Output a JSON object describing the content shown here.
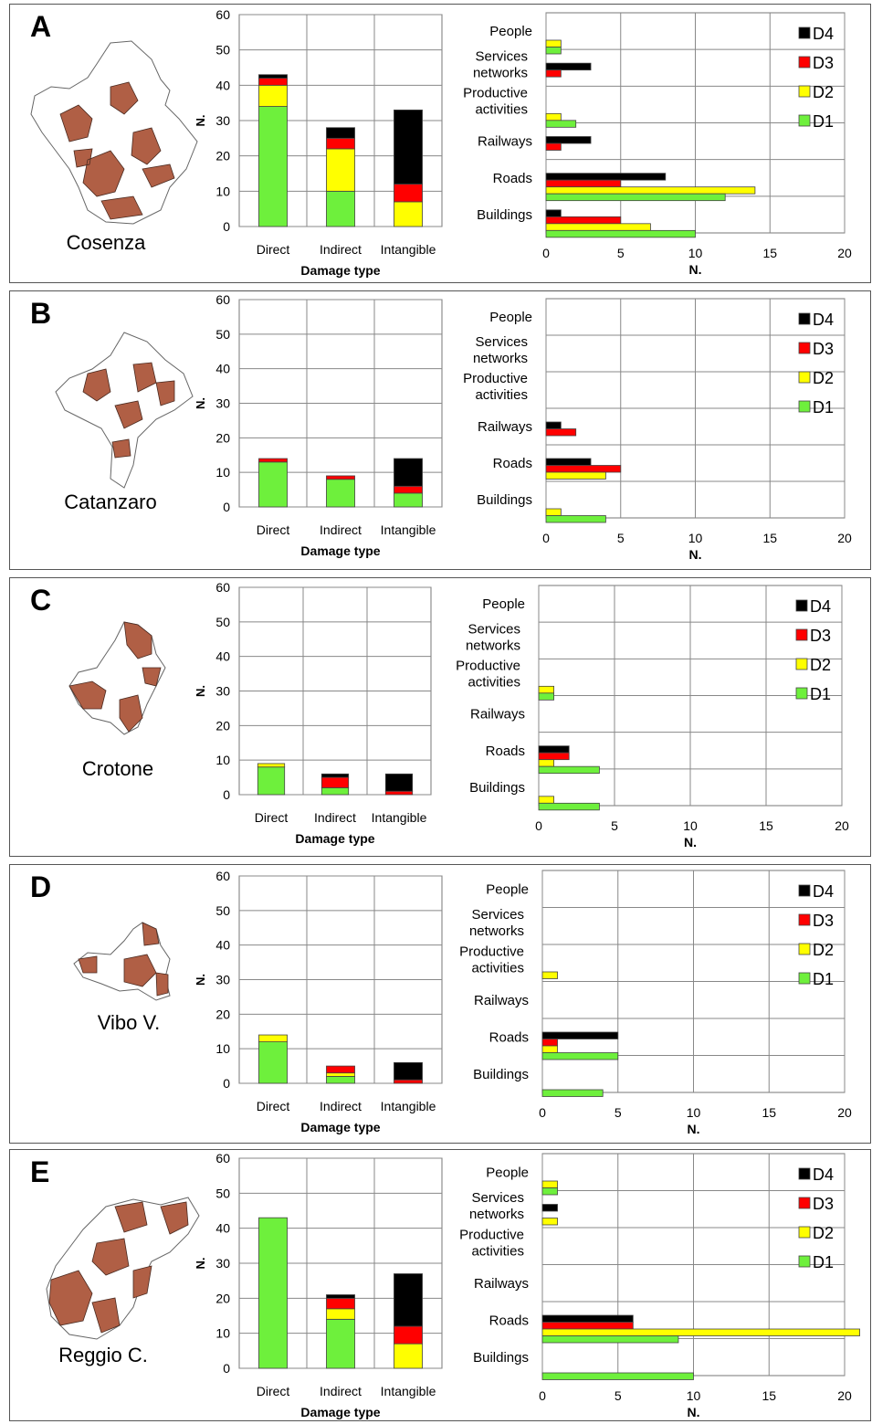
{
  "colors": {
    "D1": "#6EF03C",
    "D2": "#FFFF00",
    "D3": "#FF0000",
    "D4": "#000000",
    "map_fill": "#B05F45"
  },
  "stack_order": [
    "D1",
    "D2",
    "D3",
    "D4"
  ],
  "panels": [
    {
      "letter": "A",
      "province": "Cosenza"
    },
    {
      "letter": "B",
      "province": "Catanzaro"
    },
    {
      "letter": "C",
      "province": "Crotone"
    },
    {
      "letter": "D",
      "province": "Vibo V."
    },
    {
      "letter": "E",
      "province": "Reggio C."
    }
  ],
  "chart_data": [
    {
      "panel": "A",
      "type": "bar",
      "stacked": true,
      "categories": [
        "Direct",
        "Indirect",
        "Intangible"
      ],
      "xlabel": "Damage type",
      "ylabel": "N.",
      "ylim": [
        0,
        60
      ],
      "yticks": [
        0,
        10,
        20,
        30,
        40,
        50,
        60
      ],
      "series": [
        {
          "name": "D1",
          "values": [
            34,
            10,
            0
          ]
        },
        {
          "name": "D2",
          "values": [
            6,
            12,
            7
          ]
        },
        {
          "name": "D3",
          "values": [
            2,
            3,
            5
          ]
        },
        {
          "name": "D4",
          "values": [
            1,
            3,
            21
          ]
        }
      ]
    },
    {
      "panel": "A",
      "type": "bar",
      "orientation": "horizontal",
      "categories": [
        "People",
        "Services networks",
        "Productive activities",
        "Railways",
        "Roads",
        "Buildings"
      ],
      "xlabel": "N.",
      "xlim": [
        0,
        20
      ],
      "xticks": [
        0,
        5,
        10,
        15,
        20
      ],
      "legend": "top-right",
      "series": [
        {
          "name": "D4",
          "values": [
            0,
            3,
            0,
            3,
            8,
            1
          ]
        },
        {
          "name": "D3",
          "values": [
            0,
            1,
            0,
            1,
            5,
            5
          ]
        },
        {
          "name": "D2",
          "values": [
            1,
            0,
            1,
            0,
            14,
            7
          ]
        },
        {
          "name": "D1",
          "values": [
            1,
            0,
            2,
            0,
            12,
            10
          ]
        }
      ]
    },
    {
      "panel": "B",
      "type": "bar",
      "stacked": true,
      "categories": [
        "Direct",
        "Indirect",
        "Intangible"
      ],
      "xlabel": "Damage type",
      "ylabel": "N.",
      "ylim": [
        0,
        60
      ],
      "yticks": [
        0,
        10,
        20,
        30,
        40,
        50,
        60
      ],
      "series": [
        {
          "name": "D1",
          "values": [
            13,
            8,
            4
          ]
        },
        {
          "name": "D2",
          "values": [
            0,
            0,
            0
          ]
        },
        {
          "name": "D3",
          "values": [
            1,
            1,
            2
          ]
        },
        {
          "name": "D4",
          "values": [
            0,
            0,
            8
          ]
        }
      ]
    },
    {
      "panel": "B",
      "type": "bar",
      "orientation": "horizontal",
      "categories": [
        "People",
        "Services networks",
        "Productive activities",
        "Railways",
        "Roads",
        "Buildings"
      ],
      "xlabel": "N.",
      "xlim": [
        0,
        20
      ],
      "xticks": [
        0,
        5,
        10,
        15,
        20
      ],
      "legend": "top-right",
      "series": [
        {
          "name": "D4",
          "values": [
            0,
            0,
            0,
            1,
            3,
            0
          ]
        },
        {
          "name": "D3",
          "values": [
            0,
            0,
            0,
            2,
            5,
            0
          ]
        },
        {
          "name": "D2",
          "values": [
            0,
            0,
            0,
            0,
            4,
            1
          ]
        },
        {
          "name": "D1",
          "values": [
            0,
            0,
            0,
            0,
            0,
            4
          ]
        }
      ]
    },
    {
      "panel": "C",
      "type": "bar",
      "stacked": true,
      "categories": [
        "Direct",
        "Indirect",
        "Intangible"
      ],
      "xlabel": "Damage type",
      "ylabel": "N.",
      "ylim": [
        0,
        60
      ],
      "yticks": [
        0,
        10,
        20,
        30,
        40,
        50,
        60
      ],
      "series": [
        {
          "name": "D1",
          "values": [
            8,
            2,
            0
          ]
        },
        {
          "name": "D2",
          "values": [
            1,
            0,
            0
          ]
        },
        {
          "name": "D3",
          "values": [
            0,
            3,
            1
          ]
        },
        {
          "name": "D4",
          "values": [
            0,
            1,
            5
          ]
        }
      ]
    },
    {
      "panel": "C",
      "type": "bar",
      "orientation": "horizontal",
      "categories": [
        "People",
        "Services networks",
        "Productive activities",
        "Railways",
        "Roads",
        "Buildings"
      ],
      "xlabel": "N.",
      "xlim": [
        0,
        20
      ],
      "xticks": [
        0,
        5,
        10,
        15,
        20
      ],
      "legend": "top-right",
      "series": [
        {
          "name": "D4",
          "values": [
            0,
            0,
            0,
            0,
            2,
            0
          ]
        },
        {
          "name": "D3",
          "values": [
            0,
            0,
            0,
            0,
            2,
            0
          ]
        },
        {
          "name": "D2",
          "values": [
            0,
            0,
            1,
            0,
            1,
            1
          ]
        },
        {
          "name": "D1",
          "values": [
            0,
            0,
            1,
            0,
            4,
            4
          ]
        }
      ]
    },
    {
      "panel": "D",
      "type": "bar",
      "stacked": true,
      "categories": [
        "Direct",
        "Indirect",
        "Intangible"
      ],
      "xlabel": "Damage type",
      "ylabel": "N.",
      "ylim": [
        0,
        60
      ],
      "yticks": [
        0,
        10,
        20,
        30,
        40,
        50,
        60
      ],
      "series": [
        {
          "name": "D1",
          "values": [
            12,
            2,
            0
          ]
        },
        {
          "name": "D2",
          "values": [
            2,
            1,
            0
          ]
        },
        {
          "name": "D3",
          "values": [
            0,
            2,
            1
          ]
        },
        {
          "name": "D4",
          "values": [
            0,
            0,
            5
          ]
        }
      ]
    },
    {
      "panel": "D",
      "type": "bar",
      "orientation": "horizontal",
      "categories": [
        "People",
        "Services networks",
        "Productive activities",
        "Railways",
        "Roads",
        "Buildings"
      ],
      "xlabel": "N.",
      "xlim": [
        0,
        20
      ],
      "xticks": [
        0,
        5,
        10,
        15,
        20
      ],
      "legend": "top-right",
      "series": [
        {
          "name": "D4",
          "values": [
            0,
            0,
            0,
            0,
            5,
            0
          ]
        },
        {
          "name": "D3",
          "values": [
            0,
            0,
            0,
            0,
            1,
            0
          ]
        },
        {
          "name": "D2",
          "values": [
            0,
            0,
            1,
            0,
            1,
            0
          ]
        },
        {
          "name": "D1",
          "values": [
            0,
            0,
            0,
            0,
            5,
            4
          ]
        }
      ]
    },
    {
      "panel": "E",
      "type": "bar",
      "stacked": true,
      "categories": [
        "Direct",
        "Indirect",
        "Intangible"
      ],
      "xlabel": "Damage type",
      "ylabel": "N.",
      "ylim": [
        0,
        60
      ],
      "yticks": [
        0,
        10,
        20,
        30,
        40,
        50,
        60
      ],
      "series": [
        {
          "name": "D1",
          "values": [
            43,
            14,
            0
          ]
        },
        {
          "name": "D2",
          "values": [
            0,
            3,
            7
          ]
        },
        {
          "name": "D3",
          "values": [
            0,
            3,
            5
          ]
        },
        {
          "name": "D4",
          "values": [
            0,
            1,
            15
          ]
        }
      ]
    },
    {
      "panel": "E",
      "type": "bar",
      "orientation": "horizontal",
      "categories": [
        "People",
        "Services networks",
        "Productive activities",
        "Railways",
        "Roads",
        "Buildings"
      ],
      "xlabel": "N.",
      "xlim": [
        0,
        20
      ],
      "xticks": [
        0,
        5,
        10,
        15,
        20
      ],
      "legend": "top-right",
      "series": [
        {
          "name": "D4",
          "values": [
            0,
            1,
            0,
            0,
            6,
            0
          ]
        },
        {
          "name": "D3",
          "values": [
            0,
            0,
            0,
            0,
            6,
            0
          ]
        },
        {
          "name": "D2",
          "values": [
            1,
            1,
            0,
            0,
            21,
            0
          ]
        },
        {
          "name": "D1",
          "values": [
            1,
            0,
            0,
            0,
            9,
            10
          ]
        }
      ]
    }
  ]
}
